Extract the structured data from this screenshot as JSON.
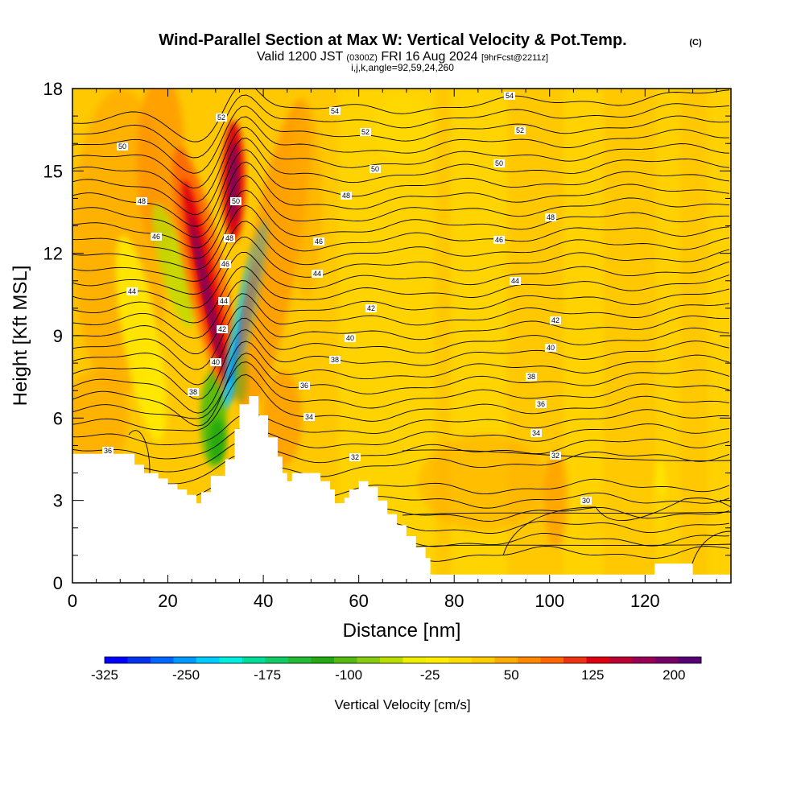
{
  "title": "Wind-Parallel Section at Max W: Vertical Velocity & Pot.Temp.",
  "copyright": "(C)",
  "subtitle_a": "Valid 1200 JST",
  "subtitle_b": "(0300Z)",
  "subtitle_c": "FRI 16 Aug 2024",
  "subtitle_d": "[9hrFcst@2211z]",
  "subtitle_e": "i,j,k,angle=92,59,24,260",
  "chart_data": {
    "type": "heatmap",
    "xlabel": "Distance [nm]",
    "ylabel": "Height [Kft MSL]",
    "xlim": [
      0,
      138
    ],
    "ylim": [
      0,
      18
    ],
    "xticks": [
      "0",
      "20",
      "40",
      "60",
      "80",
      "100",
      "120"
    ],
    "yticks": [
      "0",
      "3",
      "6",
      "9",
      "12",
      "15",
      "18"
    ],
    "colorbar": {
      "title": "Vertical Velocity [cm/s]",
      "tick_labels": [
        "-325",
        "-250",
        "-175",
        "-100",
        "-25",
        "50",
        "125",
        "200"
      ],
      "tick_values": [
        -325,
        -250,
        -175,
        -100,
        -25,
        50,
        125,
        200
      ],
      "range": [
        -325,
        225
      ],
      "colors": [
        "#0000ff",
        "#0033ee",
        "#0066ff",
        "#0099ff",
        "#00ccff",
        "#00eedd",
        "#00dd99",
        "#11cc66",
        "#22bb33",
        "#22aa11",
        "#55bb11",
        "#88cc11",
        "#bbdd00",
        "#eeee00",
        "#ffee00",
        "#ffdd00",
        "#ffcc00",
        "#ffaa00",
        "#ff8800",
        "#ff6600",
        "#ee3311",
        "#dd0011",
        "#bb0033",
        "#990055",
        "#770066",
        "#550077"
      ]
    },
    "theta_contours": {
      "levels": [
        30,
        32,
        34,
        36,
        38,
        40,
        42,
        44,
        46,
        48,
        50,
        52,
        54
      ],
      "labels": [
        "30",
        "32",
        "34",
        "36",
        "38",
        "40",
        "42",
        "44",
        "46",
        "48",
        "50",
        "52",
        "54"
      ]
    },
    "terrain_profile": {
      "distance_nm": [
        0,
        8,
        13,
        15,
        18,
        20,
        22,
        24,
        26,
        27,
        29,
        32,
        34,
        35,
        37,
        39,
        41,
        43,
        44,
        45,
        46,
        50,
        52,
        54,
        55,
        57,
        58,
        60,
        62,
        64,
        66,
        68,
        70,
        72,
        74,
        75,
        80,
        100,
        120,
        122,
        124,
        127,
        130,
        138
      ],
      "height_kft": [
        4.7,
        4.7,
        4.3,
        4.0,
        3.8,
        3.6,
        3.4,
        3.2,
        2.9,
        3.3,
        3.9,
        4.5,
        5.6,
        6.5,
        6.8,
        6.1,
        5.3,
        4.6,
        4.0,
        3.7,
        4.0,
        4.0,
        3.7,
        3.4,
        2.9,
        3.1,
        3.4,
        3.7,
        3.5,
        3.0,
        2.5,
        2.1,
        1.7,
        1.3,
        0.9,
        0.3,
        0.3,
        0.3,
        0.3,
        0.7,
        0.7,
        0.7,
        0.3,
        0.3
      ]
    }
  }
}
